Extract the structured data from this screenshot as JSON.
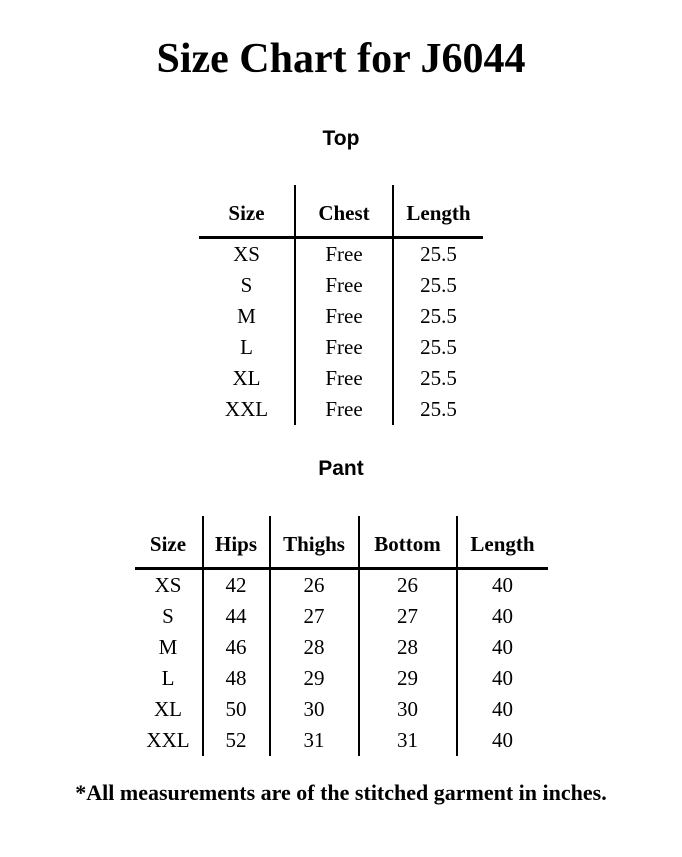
{
  "page": {
    "title": "Size Chart for J6044",
    "footnote": "*All measurements are of the stitched garment in inches."
  },
  "colors": {
    "text": "#000000",
    "background": "#ffffff",
    "table_lines": "#000000"
  },
  "top_section": {
    "heading": "Top",
    "table": {
      "headers": [
        "Size",
        "Chest",
        "Length"
      ],
      "rows": [
        [
          "XS",
          "Free",
          "25.5"
        ],
        [
          "S",
          "Free",
          "25.5"
        ],
        [
          "M",
          "Free",
          "25.5"
        ],
        [
          "L",
          "Free",
          "25.5"
        ],
        [
          "XL",
          "Free",
          "25.5"
        ],
        [
          "XXL",
          "Free",
          "25.5"
        ]
      ]
    }
  },
  "pant_section": {
    "heading": "Pant",
    "table": {
      "headers": [
        "Size",
        "Hips",
        "Thighs",
        "Bottom",
        "Length"
      ],
      "rows": [
        [
          "XS",
          "42",
          "26",
          "26",
          "40"
        ],
        [
          "S",
          "44",
          "27",
          "27",
          "40"
        ],
        [
          "M",
          "46",
          "28",
          "28",
          "40"
        ],
        [
          "L",
          "48",
          "29",
          "29",
          "40"
        ],
        [
          "XL",
          "50",
          "30",
          "30",
          "40"
        ],
        [
          "XXL",
          "52",
          "31",
          "31",
          "40"
        ]
      ]
    }
  }
}
